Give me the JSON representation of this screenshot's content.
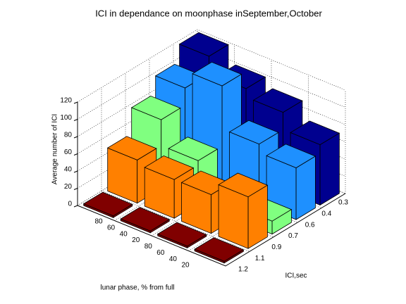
{
  "chart_data": {
    "type": "bar3d",
    "title": "ICI in dependance on moonphase inSeptember,October",
    "xlabel": "lunar phase, % from full",
    "ylabel": "ICI,sec",
    "zlabel": "Average number of ICI",
    "x_tick_labels": [
      "80",
      "60",
      "40",
      "20",
      "80",
      "60",
      "40",
      "20"
    ],
    "y_tick_labels": [
      "1.2",
      "1.1",
      "0.9",
      "0.7",
      "0.6",
      "0.4",
      "0.3"
    ],
    "zlim": [
      0,
      120
    ],
    "zticks": [
      0,
      20,
      40,
      60,
      80,
      100,
      120
    ],
    "grid": true,
    "series": [
      {
        "color": "#800000",
        "values": [
          2,
          2,
          2,
          2
        ]
      },
      {
        "color": "#ff8000",
        "values": [
          50,
          45,
          45,
          60
        ]
      },
      {
        "color": "#80ff80",
        "values": [
          80,
          50,
          10,
          15
        ]
      },
      {
        "color": "#1e90ff",
        "values": [
          100,
          120,
          70,
          60
        ]
      },
      {
        "color": "#00008f",
        "values": [
          120,
          100,
          90,
          70
        ]
      }
    ]
  }
}
